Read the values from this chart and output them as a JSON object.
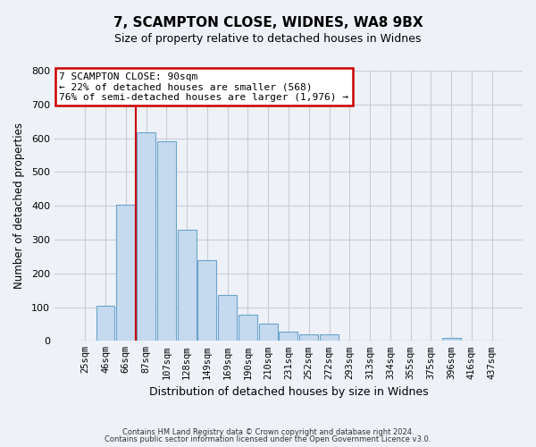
{
  "title": "7, SCAMPTON CLOSE, WIDNES, WA8 9BX",
  "subtitle": "Size of property relative to detached houses in Widnes",
  "xlabel": "Distribution of detached houses by size in Widnes",
  "ylabel": "Number of detached properties",
  "bin_labels": [
    "25sqm",
    "46sqm",
    "66sqm",
    "87sqm",
    "107sqm",
    "128sqm",
    "149sqm",
    "169sqm",
    "190sqm",
    "210sqm",
    "231sqm",
    "252sqm",
    "272sqm",
    "293sqm",
    "313sqm",
    "334sqm",
    "355sqm",
    "375sqm",
    "396sqm",
    "416sqm",
    "437sqm"
  ],
  "bin_values": [
    0,
    105,
    402,
    617,
    590,
    330,
    238,
    137,
    77,
    50,
    27,
    20,
    20,
    0,
    0,
    0,
    0,
    0,
    8,
    0,
    0
  ],
  "bar_color": "#c5d9ef",
  "bar_edge_color": "#6aa3cb",
  "property_line_bin_index": 3,
  "annotation_title": "7 SCAMPTON CLOSE: 90sqm",
  "annotation_line1": "← 22% of detached houses are smaller (568)",
  "annotation_line2": "76% of semi-detached houses are larger (1,976) →",
  "annotation_box_color": "#ffffff",
  "annotation_box_edge_color": "#cc0000",
  "vline_color": "#cc0000",
  "ylim": [
    0,
    800
  ],
  "yticks": [
    0,
    100,
    200,
    300,
    400,
    500,
    600,
    700,
    800
  ],
  "grid_color": "#c8ccd4",
  "bg_color": "#eef2f8",
  "footer1": "Contains HM Land Registry data © Crown copyright and database right 2024.",
  "footer2": "Contains public sector information licensed under the Open Government Licence v3.0."
}
